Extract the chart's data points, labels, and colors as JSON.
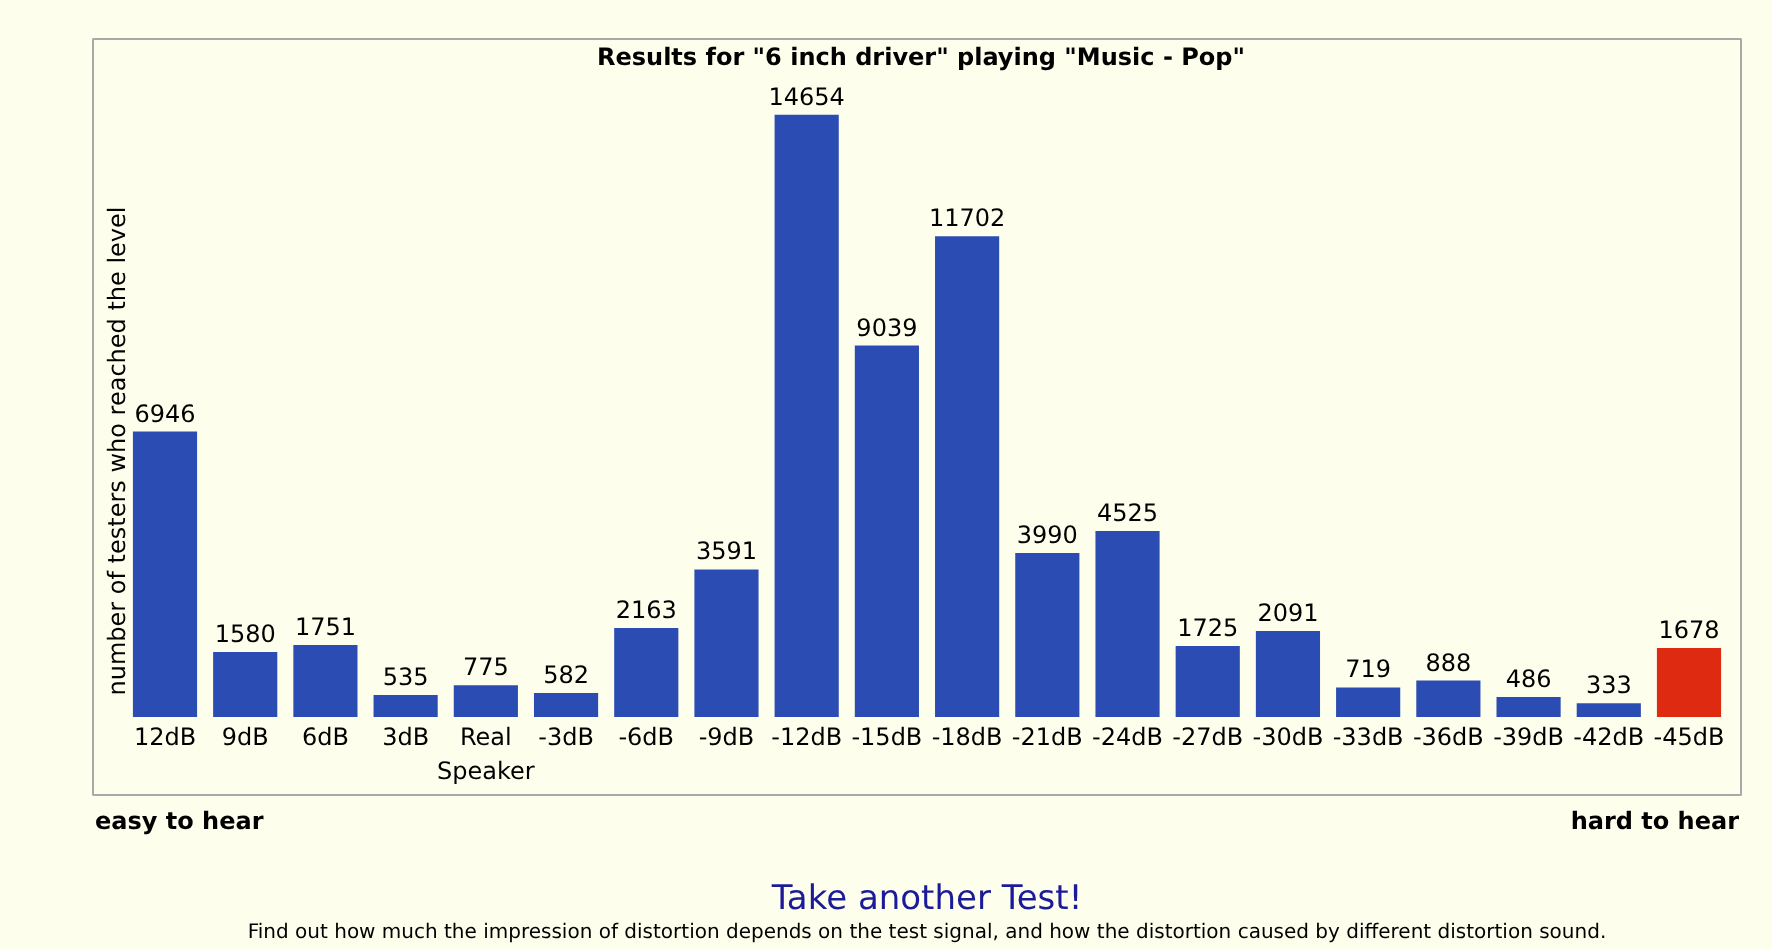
{
  "chart_data": {
    "type": "bar",
    "title": "Results for \"6 inch driver\" playing \"Music - Pop\"",
    "ylabel": "number of testers who reached the level",
    "categories": [
      "12dB",
      "9dB",
      "6dB",
      "3dB",
      "Real Speaker",
      "-3dB",
      "-6dB",
      "-9dB",
      "-12dB",
      "-15dB",
      "-18dB",
      "-21dB",
      "-24dB",
      "-27dB",
      "-30dB",
      "-33dB",
      "-36dB",
      "-39dB",
      "-42dB",
      "-45dB"
    ],
    "values": [
      6946,
      1580,
      1751,
      535,
      775,
      582,
      2163,
      3591,
      14654,
      9039,
      11702,
      3990,
      4525,
      1725,
      2091,
      719,
      888,
      486,
      333,
      1678
    ],
    "colors": [
      "#2b4db3",
      "#2b4db3",
      "#2b4db3",
      "#2b4db3",
      "#2b4db3",
      "#2b4db3",
      "#2b4db3",
      "#2b4db3",
      "#2b4db3",
      "#2b4db3",
      "#2b4db3",
      "#2b4db3",
      "#2b4db3",
      "#2b4db3",
      "#2b4db3",
      "#2b4db3",
      "#2b4db3",
      "#2b4db3",
      "#2b4db3",
      "#dd2a10"
    ],
    "data_labels": true,
    "ylim": [
      0,
      16500
    ],
    "tick_labels": "x",
    "annotations": [
      "easy to hear",
      "hard to hear",
      "Take another Test!",
      "Find out how much the impression of distortion depends on the test signal, and how the distortion caused by different distortion sound."
    ]
  }
}
